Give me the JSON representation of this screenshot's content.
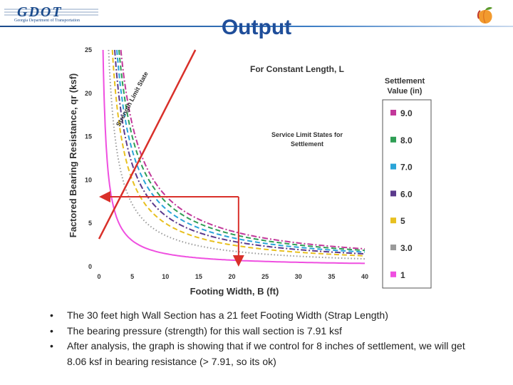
{
  "header": {
    "logo_text": "GDOT",
    "logo_subtitle": "Georgia Department of Transportation",
    "title": "Output"
  },
  "bullets": [
    "The 30 feet high Wall Section has a 21 feet Footing Width (Strap Length)",
    "The bearing pressure (strength) for this wall section is 7.91 ksf",
    "After analysis, the graph is showing that if we control for 8 inches of settlement, we will get 8.06 ksf in bearing resistance (> 7.91, so its ok)"
  ],
  "chart_data": {
    "type": "line",
    "title": "For Constant Length, L",
    "xlabel": "Footing Width, B (ft)",
    "ylabel": "Factored Bearing Resistance, qr (ksf)",
    "xlim": [
      0,
      40
    ],
    "ylim": [
      0,
      25
    ],
    "xticks": [
      "0",
      "5",
      "10",
      "15",
      "20",
      "25",
      "30",
      "35",
      "40"
    ],
    "yticks": [
      "0",
      "5",
      "10",
      "15",
      "20",
      "25"
    ],
    "legend_title": "Settlement Value (in)",
    "legend_position": "right",
    "annotations": [
      "Strength Limit State",
      "Service Limit States for Settlement"
    ],
    "strength_line": {
      "name": "Strength Limit State",
      "color": "#d9302a",
      "x": [
        0,
        14.5
      ],
      "y": [
        3.2,
        25
      ]
    },
    "settlement_series": [
      {
        "name": "9.0",
        "color": "#c2389a",
        "dash": "dashdot",
        "k": 82
      },
      {
        "name": "8.0",
        "color": "#2f9e55",
        "dash": "dash",
        "k": 75
      },
      {
        "name": "7.0",
        "color": "#2aa4d8",
        "dash": "dash",
        "k": 67
      },
      {
        "name": "6.0",
        "color": "#5b3a8c",
        "dash": "dashdot",
        "k": 59
      },
      {
        "name": "5",
        "color": "#e8c020",
        "dash": "dash",
        "k": 50
      },
      {
        "name": "3.0",
        "color": "#9a9a9a",
        "dash": "dot",
        "k": 36
      },
      {
        "name": "1",
        "color": "#ef4fe0",
        "dash": "solid",
        "k": 15
      }
    ],
    "markers": {
      "footing_width": 21,
      "bearing_resistance": 8.06
    }
  }
}
